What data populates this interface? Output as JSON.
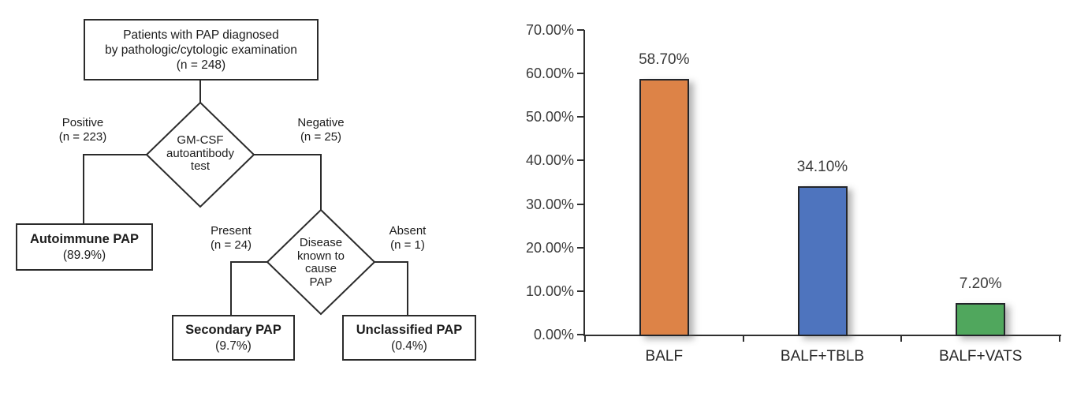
{
  "flowchart": {
    "root": {
      "lines": [
        "Patients with PAP diagnosed",
        "by pathologic/cytologic examination",
        "(n = 248)"
      ]
    },
    "decision1": {
      "lines": [
        "GM-CSF",
        "autoantibody",
        "test"
      ]
    },
    "positive_label": {
      "lines": [
        "Positive",
        "(n = 223)"
      ]
    },
    "negative_label": {
      "lines": [
        "Negative",
        "(n = 25)"
      ]
    },
    "autoimmune_box": {
      "title": "Autoimmune PAP",
      "value": "(89.9%)"
    },
    "decision2": {
      "lines": [
        "Disease",
        "known to",
        "cause",
        "PAP"
      ]
    },
    "present_label": {
      "lines": [
        "Present",
        "(n = 24)"
      ]
    },
    "absent_label": {
      "lines": [
        "Absent",
        "(n = 1)"
      ]
    },
    "secondary_box": {
      "title": "Secondary PAP",
      "value": "(9.7%)"
    },
    "unclassified_box": {
      "title": "Unclassified PAP",
      "value": "(0.4%)"
    }
  },
  "chart_data": {
    "type": "bar",
    "categories": [
      "BALF",
      "BALF+TBLB",
      "BALF+VATS"
    ],
    "values": [
      58.7,
      34.1,
      7.2
    ],
    "data_labels": [
      "58.70%",
      "34.10%",
      "7.20%"
    ],
    "y_ticks": [
      "70.00%",
      "60.00%",
      "50.00%",
      "40.00%",
      "30.00%",
      "20.00%",
      "10.00%",
      "0.00%"
    ],
    "ylim": [
      0,
      70
    ],
    "bar_colors": [
      "#DD8347",
      "#4E74BE",
      "#50A75D"
    ],
    "axis_color": "#2f2f2f",
    "grid": false,
    "legend": false
  }
}
